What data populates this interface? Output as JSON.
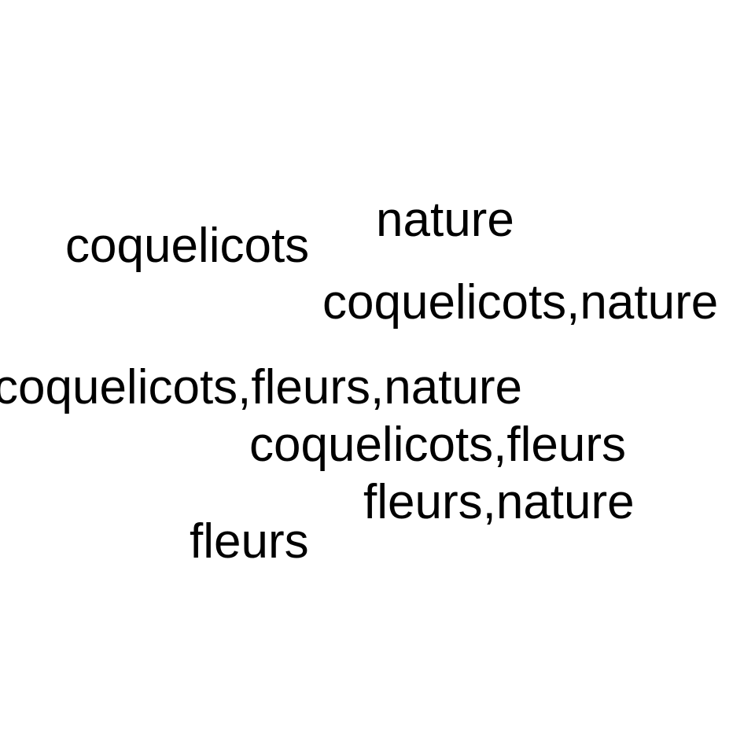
{
  "word_cloud": {
    "words": [
      "coquelicots",
      "nature",
      "coquelicots,nature",
      "coquelicots,fleurs,nature",
      "coquelicots,fleurs",
      "fleurs,nature",
      "fleurs"
    ],
    "text_color": "#000000",
    "background_color": "#ffffff"
  }
}
